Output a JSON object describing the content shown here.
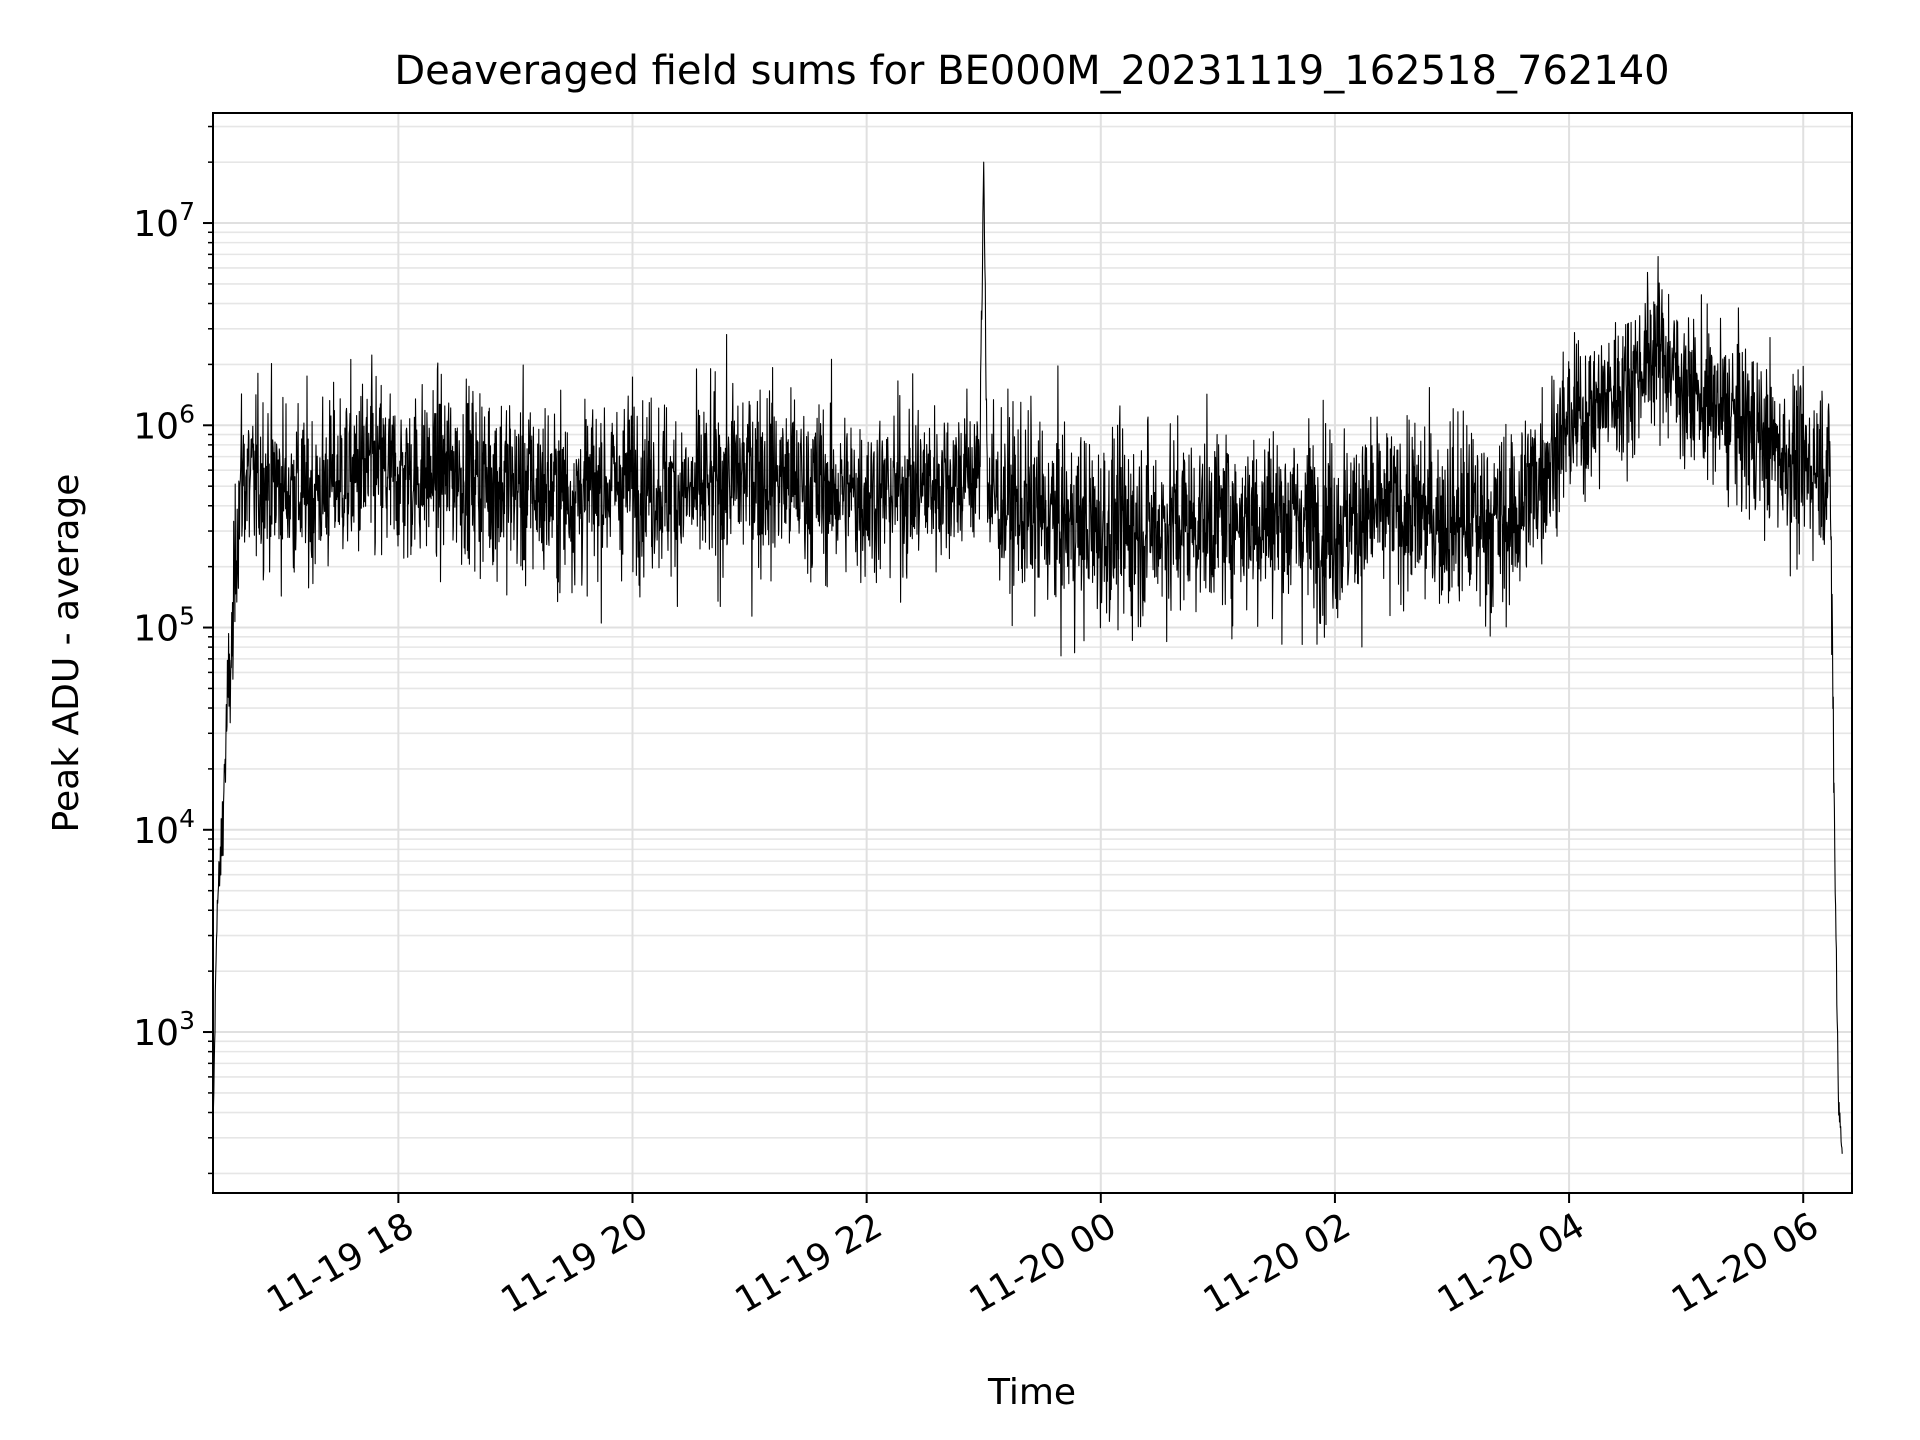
{
  "chart_data": {
    "type": "line",
    "title": "Deaveraged field sums for BE000M_20231119_162518_762140",
    "xlabel": "Time",
    "ylabel": "Peak ADU - average",
    "yscale": "log",
    "ylim": [
      160,
      35000000
    ],
    "xlim": [
      "2023-11-19 16:25",
      "2023-11-20 06:25"
    ],
    "x_ticks": [
      {
        "value": "2023-11-19 18:00",
        "label": "11-19 18"
      },
      {
        "value": "2023-11-19 20:00",
        "label": "11-19 20"
      },
      {
        "value": "2023-11-19 22:00",
        "label": "11-19 22"
      },
      {
        "value": "2023-11-20 00:00",
        "label": "11-20 00"
      },
      {
        "value": "2023-11-20 02:00",
        "label": "11-20 02"
      },
      {
        "value": "2023-11-20 04:00",
        "label": "11-20 04"
      },
      {
        "value": "2023-11-20 06:00",
        "label": "11-20 06"
      }
    ],
    "y_ticks": [
      {
        "value": 1000,
        "base": "10",
        "exp": "3"
      },
      {
        "value": 10000,
        "base": "10",
        "exp": "4"
      },
      {
        "value": 100000,
        "base": "10",
        "exp": "5"
      },
      {
        "value": 1000000,
        "base": "10",
        "exp": "6"
      },
      {
        "value": 10000000,
        "base": "10",
        "exp": "7"
      }
    ],
    "grid": true,
    "line_color": "#000000",
    "series": [
      {
        "x": [
          "2023-11-19 16:25",
          "2023-11-19 16:27",
          "2023-11-19 16:29",
          "2023-11-19 16:31",
          "2023-11-19 16:33",
          "2023-11-19 16:35",
          "2023-11-19 16:37",
          "2023-11-19 16:40",
          "2023-11-19 16:45",
          "2023-11-19 16:50",
          "2023-11-19 17:00",
          "2023-11-19 17:15",
          "2023-11-19 17:30",
          "2023-11-19 17:45",
          "2023-11-19 18:00",
          "2023-11-19 18:30",
          "2023-11-19 19:00",
          "2023-11-19 19:30",
          "2023-11-19 20:00",
          "2023-11-19 20:30",
          "2023-11-19 21:00",
          "2023-11-19 21:30",
          "2023-11-19 22:00",
          "2023-11-19 22:30",
          "2023-11-19 22:58",
          "2023-11-19 23:00",
          "2023-11-19 23:02",
          "2023-11-19 23:30",
          "2023-11-20 00:00",
          "2023-11-20 00:30",
          "2023-11-20 01:00",
          "2023-11-20 01:30",
          "2023-11-20 02:00",
          "2023-11-20 02:30",
          "2023-11-20 03:00",
          "2023-11-20 03:30",
          "2023-11-20 04:00",
          "2023-11-20 04:30",
          "2023-11-20 04:45",
          "2023-11-20 05:00",
          "2023-11-20 05:30",
          "2023-11-20 06:00",
          "2023-11-20 06:10",
          "2023-11-20 06:14",
          "2023-11-20 06:16",
          "2023-11-20 06:18",
          "2023-11-20 06:20"
        ],
        "values": [
          300,
          4000,
          7000,
          20000,
          50000,
          80000,
          300000,
          600000,
          500000,
          550000,
          500000,
          450000,
          550000,
          600000,
          550000,
          600000,
          500000,
          450000,
          550000,
          450000,
          600000,
          500000,
          450000,
          500000,
          600000,
          20000000,
          450000,
          350000,
          300000,
          320000,
          350000,
          350000,
          330000,
          380000,
          350000,
          330000,
          1000000,
          1600000,
          2500000,
          1500000,
          1000000,
          600000,
          700000,
          500000,
          10000,
          500,
          250
        ],
        "spread": [
          0.05,
          0.1,
          0.2,
          0.25,
          0.3,
          0.35,
          0.35,
          0.45,
          0.4,
          0.4,
          0.4,
          0.4,
          0.4,
          0.45,
          0.4,
          0.4,
          0.45,
          0.4,
          0.4,
          0.4,
          0.45,
          0.4,
          0.4,
          0.4,
          0.35,
          0.0,
          0.4,
          0.45,
          0.45,
          0.45,
          0.4,
          0.45,
          0.45,
          0.4,
          0.45,
          0.45,
          0.35,
          0.35,
          0.35,
          0.35,
          0.4,
          0.4,
          0.4,
          0.4,
          0.2,
          0.1,
          0.05
        ]
      }
    ]
  }
}
